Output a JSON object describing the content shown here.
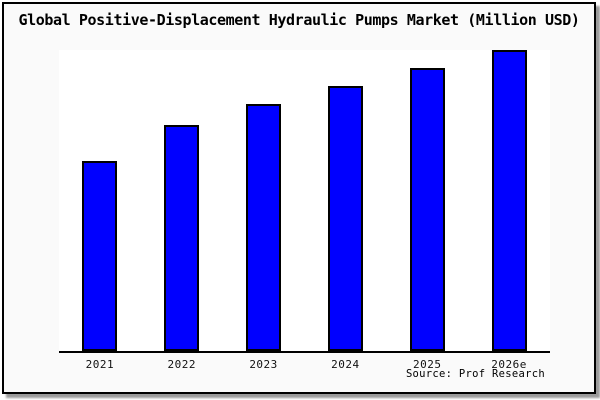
{
  "window": {
    "title": "Global Positive-Displacement Hydraulic Pumps Market (Million USD)"
  },
  "source_note": "Source: Prof Research",
  "colors": {
    "bar_fill": "#0000ff",
    "bar_border": "#000000",
    "frame_background": "#fafafa",
    "plot_background": "#ffffff",
    "axis": "#000000",
    "frame_border": "#000000",
    "shadow": "#9a9a9a",
    "title_text": "#000000",
    "tick_text": "#111111"
  },
  "chart_data": {
    "type": "bar",
    "title": "Global Positive-Displacement Hydraulic Pumps Market (Million USD)",
    "categories": [
      "2021",
      "2022",
      "2023",
      "2024",
      "2025",
      "2026e"
    ],
    "values": [
      63,
      75,
      82,
      88,
      94,
      100
    ],
    "values_note": "estimated relative heights; no y-axis tick labels or data labels are shown in the chart",
    "xlabel": "",
    "ylabel": "",
    "ylim": [
      0,
      100
    ],
    "grid": false,
    "legend": null,
    "annotations": [
      "Source: Prof Research"
    ]
  }
}
